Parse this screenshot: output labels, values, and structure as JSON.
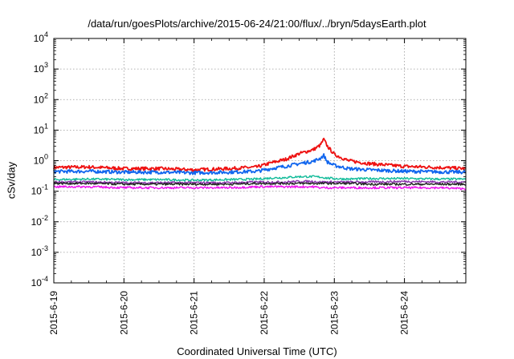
{
  "chart_data": {
    "type": "line",
    "title": "/data/run/goesPlots/archive/2015-06-24/21:00/flux/../bryn/5daysEarth.plot",
    "xlabel": "Coordinated Universal Time (UTC)",
    "ylabel": "cSv/day",
    "yscale": "log",
    "ylim": [
      0.0001,
      10000
    ],
    "xlim": [
      "2015-06-19",
      "2015-06-24 21:00"
    ],
    "x_ticks": [
      "2015-6-19",
      "2015-6-20",
      "2015-6-21",
      "2015-6-22",
      "2015-6-23",
      "2015-6-24"
    ],
    "y_ticks": [
      {
        "value": 0.0001,
        "base": "10",
        "exp": "-4"
      },
      {
        "value": 0.001,
        "base": "10",
        "exp": "-3"
      },
      {
        "value": 0.01,
        "base": "10",
        "exp": "-2"
      },
      {
        "value": 0.1,
        "base": "10",
        "exp": "-1"
      },
      {
        "value": 1,
        "base": "10",
        "exp": "0"
      },
      {
        "value": 10,
        "base": "10",
        "exp": "1"
      },
      {
        "value": 100,
        "base": "10",
        "exp": "2"
      },
      {
        "value": 1000,
        "base": "10",
        "exp": "3"
      },
      {
        "value": 10000,
        "base": "10",
        "exp": "4"
      }
    ],
    "grid": true,
    "legend": "none",
    "x_days": [
      0,
      0.5,
      1.0,
      1.5,
      2.0,
      2.5,
      2.9,
      3.1,
      3.3,
      3.5,
      3.7,
      3.8,
      3.85,
      3.9,
      4.0,
      4.2,
      4.5,
      5.0,
      5.5,
      5.875
    ],
    "series": [
      {
        "color": "#ee1111",
        "values": [
          0.6,
          0.62,
          0.55,
          0.55,
          0.5,
          0.55,
          0.62,
          0.85,
          1.1,
          1.7,
          2.3,
          3.2,
          5.0,
          3.0,
          1.6,
          1.0,
          0.8,
          0.65,
          0.6,
          0.55
        ]
      },
      {
        "color": "#1166ee",
        "values": [
          0.44,
          0.45,
          0.42,
          0.42,
          0.4,
          0.42,
          0.45,
          0.55,
          0.65,
          0.8,
          0.95,
          1.2,
          1.5,
          0.9,
          0.7,
          0.55,
          0.5,
          0.45,
          0.43,
          0.42
        ]
      },
      {
        "color": "#11bb99",
        "values": [
          0.24,
          0.25,
          0.24,
          0.24,
          0.23,
          0.24,
          0.25,
          0.27,
          0.28,
          0.3,
          0.3,
          0.29,
          0.28,
          0.27,
          0.26,
          0.25,
          0.26,
          0.26,
          0.25,
          0.25
        ]
      },
      {
        "color": "#8833aa",
        "values": [
          0.2,
          0.2,
          0.19,
          0.19,
          0.19,
          0.19,
          0.2,
          0.2,
          0.2,
          0.21,
          0.21,
          0.2,
          0.2,
          0.2,
          0.2,
          0.2,
          0.2,
          0.21,
          0.2,
          0.2
        ]
      },
      {
        "color": "#222222",
        "values": [
          0.18,
          0.18,
          0.17,
          0.17,
          0.17,
          0.17,
          0.18,
          0.18,
          0.18,
          0.18,
          0.18,
          0.18,
          0.18,
          0.18,
          0.18,
          0.18,
          0.17,
          0.17,
          0.17,
          0.17
        ]
      },
      {
        "color": "#ee11ee",
        "values": [
          0.14,
          0.14,
          0.13,
          0.13,
          0.13,
          0.13,
          0.14,
          0.14,
          0.14,
          0.14,
          0.14,
          0.13,
          0.13,
          0.13,
          0.13,
          0.13,
          0.13,
          0.13,
          0.13,
          0.12
        ]
      }
    ]
  }
}
